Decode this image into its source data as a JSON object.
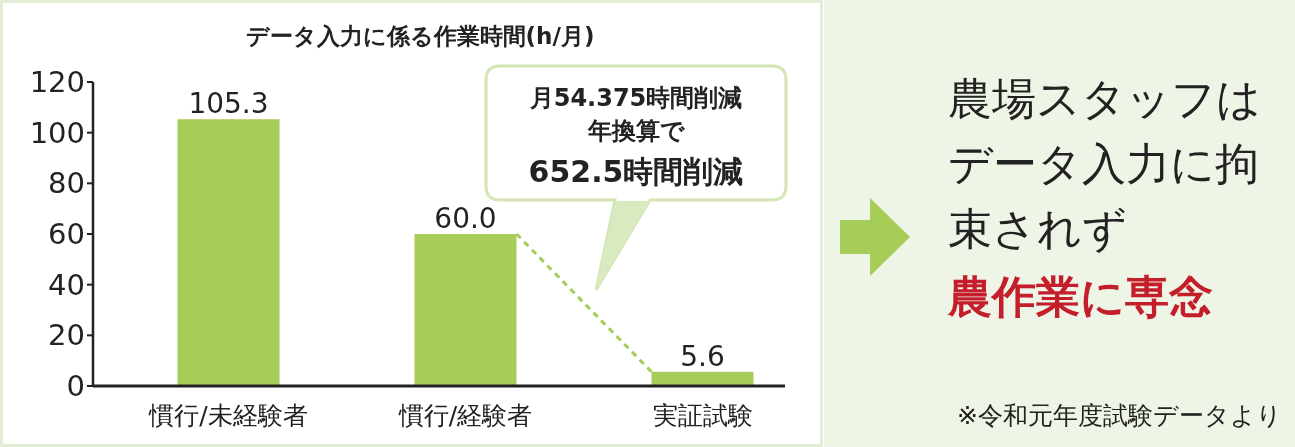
{
  "chart_data": {
    "type": "bar",
    "title": "データ入力に係る作業時間(h/月)",
    "categories": [
      "慣行/未経験者",
      "慣行/経験者",
      "実証試験"
    ],
    "values": [
      105.3,
      60.0,
      5.6
    ],
    "color": "#a6cd57",
    "ylim": [
      0,
      120
    ],
    "yticks": [
      0,
      20,
      40,
      60,
      80,
      100,
      120
    ],
    "value_labels": [
      "105.3",
      "60.0",
      "5.6"
    ],
    "grid": false,
    "annotations": [
      "月54.375時間削減",
      "年換算で",
      "652.5時間削減",
      "農場スタッフはデータ入力に拘束されず",
      "農作業に専念",
      "※令和元年度試験データより"
    ]
  }
}
